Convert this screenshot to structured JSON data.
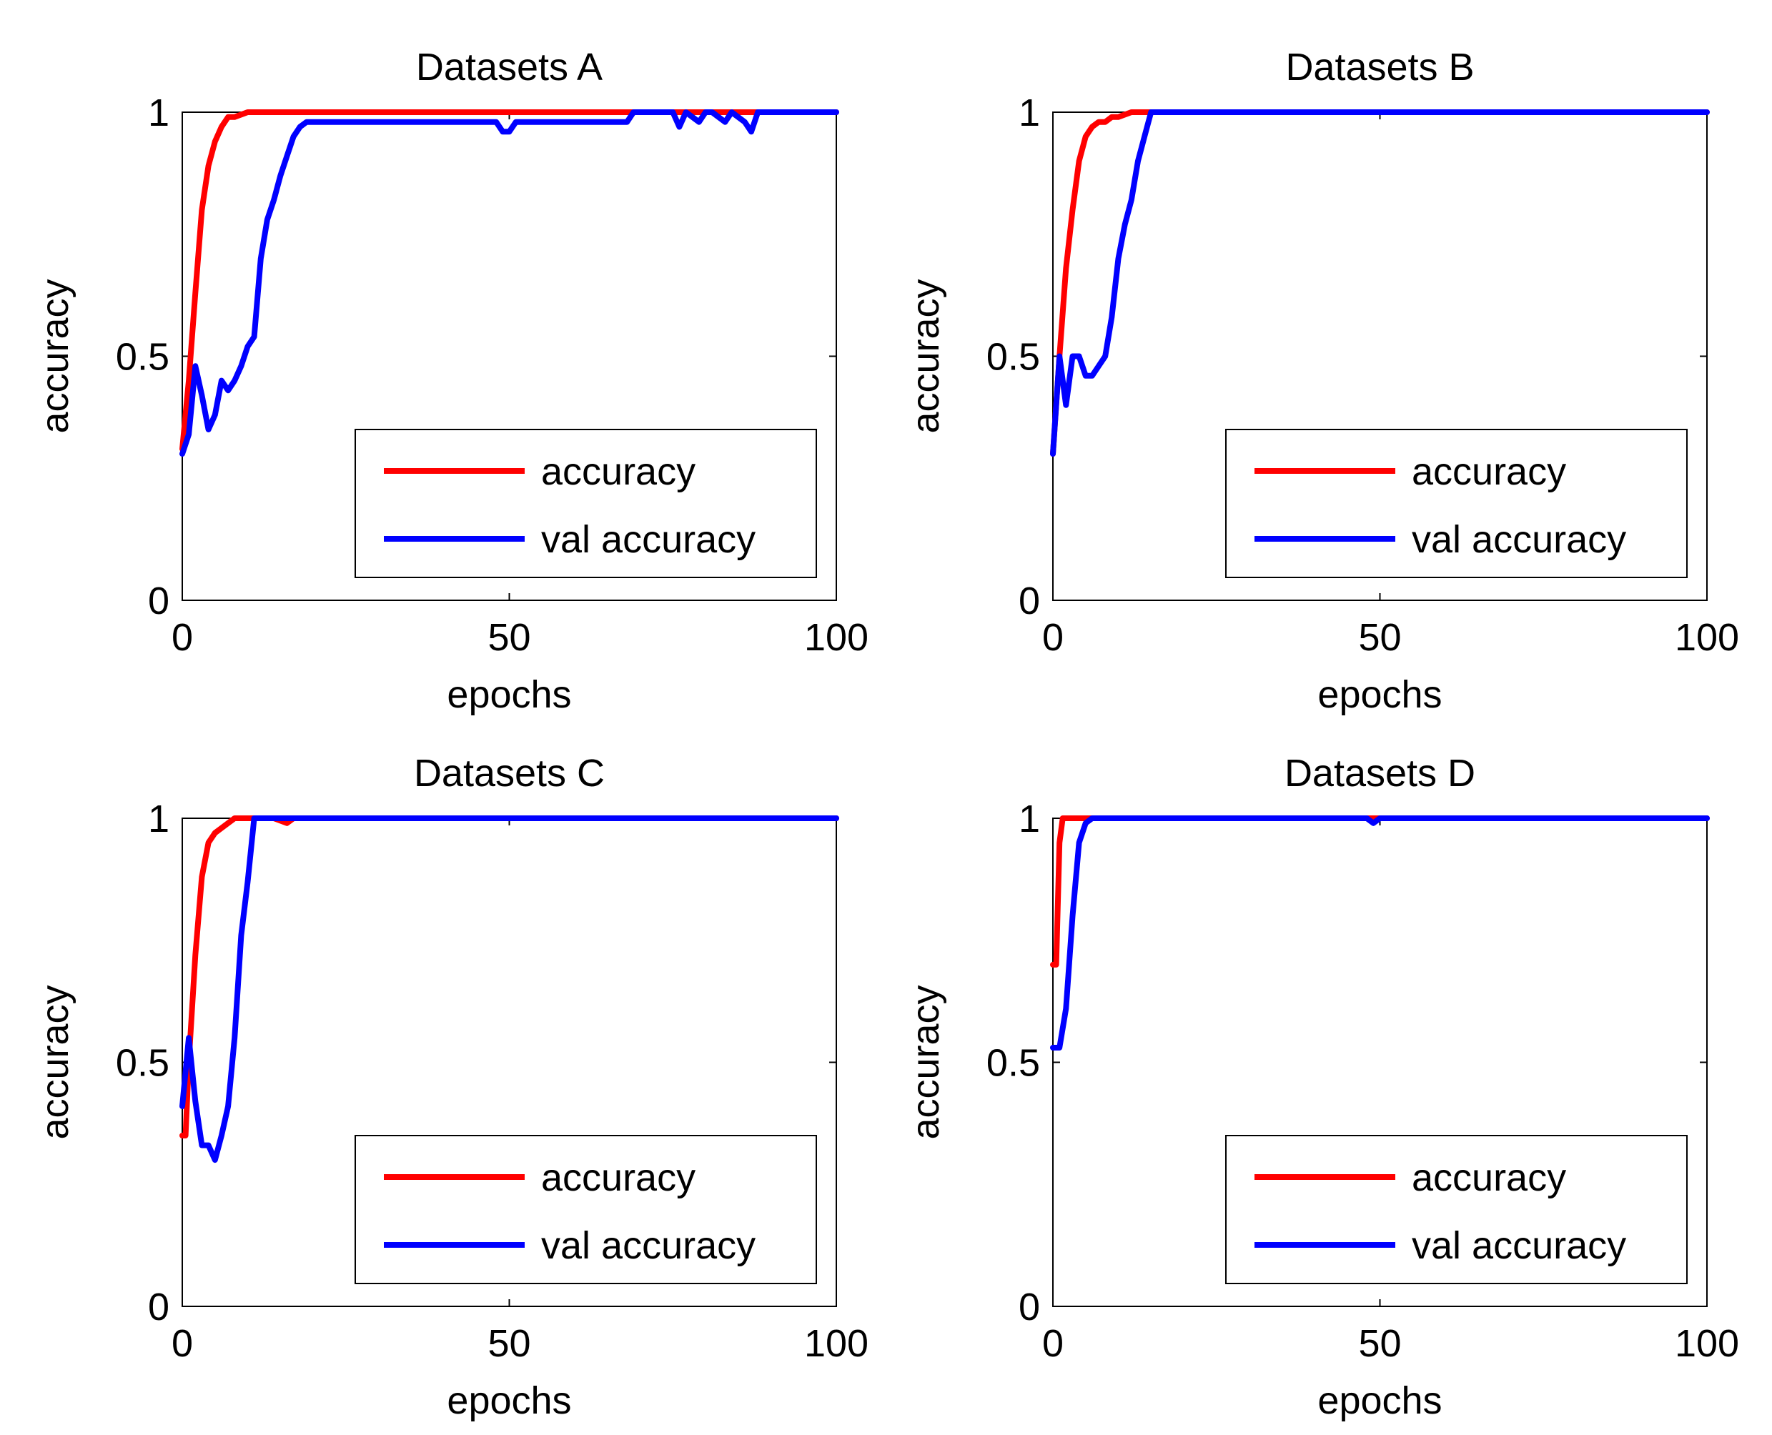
{
  "chart_data": [
    {
      "type": "line",
      "title": "Datasets A",
      "xlabel": "epochs",
      "ylabel": "accuracy",
      "xlim": [
        0,
        100
      ],
      "ylim": [
        0,
        1
      ],
      "xticks": [
        "0",
        "50",
        "100"
      ],
      "yticks": [
        "0",
        "0.5",
        "1"
      ],
      "legend_position": "bottom-right",
      "series": [
        {
          "name": "accuracy",
          "color": "#ff0000",
          "x": [
            0,
            1,
            2,
            3,
            4,
            5,
            6,
            7,
            8,
            10,
            12,
            14,
            16,
            18,
            20,
            100
          ],
          "values": [
            0.31,
            0.45,
            0.63,
            0.8,
            0.89,
            0.94,
            0.97,
            0.99,
            0.99,
            1.0,
            1.0,
            1.0,
            1.0,
            1.0,
            1.0,
            1.0
          ]
        },
        {
          "name": "val accuracy",
          "color": "#0000ff",
          "x": [
            0,
            1,
            2,
            3,
            4,
            5,
            6,
            7,
            8,
            9,
            10,
            11,
            12,
            13,
            14,
            15,
            16,
            17,
            18,
            19,
            20,
            48,
            49,
            50,
            51,
            68,
            69,
            75,
            76,
            77,
            79,
            80,
            81,
            83,
            84,
            86,
            87,
            88,
            100
          ],
          "values": [
            0.3,
            0.34,
            0.48,
            0.42,
            0.35,
            0.38,
            0.45,
            0.43,
            0.45,
            0.48,
            0.52,
            0.54,
            0.7,
            0.78,
            0.82,
            0.87,
            0.91,
            0.95,
            0.97,
            0.98,
            0.98,
            0.98,
            0.96,
            0.96,
            0.98,
            0.98,
            1.0,
            1.0,
            0.97,
            1.0,
            0.98,
            1.0,
            1.0,
            0.98,
            1.0,
            0.98,
            0.96,
            1.0,
            1.0
          ]
        }
      ]
    },
    {
      "type": "line",
      "title": "Datasets B",
      "xlabel": "epochs",
      "ylabel": "accuracy",
      "xlim": [
        0,
        100
      ],
      "ylim": [
        0,
        1
      ],
      "xticks": [
        "0",
        "50",
        "100"
      ],
      "yticks": [
        "0",
        "0.5",
        "1"
      ],
      "legend_position": "bottom-right",
      "series": [
        {
          "name": "accuracy",
          "color": "#ff0000",
          "x": [
            0,
            1,
            2,
            3,
            4,
            5,
            6,
            7,
            8,
            9,
            10,
            12,
            14,
            16,
            100
          ],
          "values": [
            0.3,
            0.5,
            0.68,
            0.8,
            0.9,
            0.95,
            0.97,
            0.98,
            0.98,
            0.99,
            0.99,
            1.0,
            1.0,
            1.0,
            1.0
          ]
        },
        {
          "name": "val accuracy",
          "color": "#0000ff",
          "x": [
            0,
            1,
            2,
            3,
            4,
            5,
            6,
            7,
            8,
            9,
            10,
            11,
            12,
            13,
            14,
            15,
            16,
            17,
            18,
            19,
            20,
            100
          ],
          "values": [
            0.3,
            0.5,
            0.4,
            0.5,
            0.5,
            0.46,
            0.46,
            0.48,
            0.5,
            0.58,
            0.7,
            0.77,
            0.82,
            0.9,
            0.95,
            1.0,
            1.0,
            1.0,
            1.0,
            1.0,
            1.0,
            1.0
          ]
        }
      ]
    },
    {
      "type": "line",
      "title": "Datasets C",
      "xlabel": "epochs",
      "ylabel": "accuracy",
      "xlim": [
        0,
        100
      ],
      "ylim": [
        0,
        1
      ],
      "xticks": [
        "0",
        "50",
        "100"
      ],
      "yticks": [
        "0",
        "0.5",
        "1"
      ],
      "legend_position": "bottom-right",
      "series": [
        {
          "name": "accuracy",
          "color": "#ff0000",
          "x": [
            0,
            0.5,
            1,
            2,
            3,
            4,
            5,
            6,
            7,
            8,
            10,
            12,
            14,
            16,
            17,
            18,
            100
          ],
          "values": [
            0.35,
            0.35,
            0.5,
            0.72,
            0.88,
            0.95,
            0.97,
            0.98,
            0.99,
            1.0,
            1.0,
            1.0,
            1.0,
            0.99,
            1.0,
            1.0,
            1.0
          ]
        },
        {
          "name": "val accuracy",
          "color": "#0000ff",
          "x": [
            0,
            1,
            2,
            3,
            4,
            5,
            6,
            7,
            8,
            9,
            10,
            11,
            12,
            13,
            100
          ],
          "values": [
            0.41,
            0.55,
            0.42,
            0.33,
            0.33,
            0.3,
            0.35,
            0.41,
            0.55,
            0.76,
            0.87,
            1.0,
            1.0,
            1.0,
            1.0
          ]
        }
      ]
    },
    {
      "type": "line",
      "title": "Datasets D",
      "xlabel": "epochs",
      "ylabel": "accuracy",
      "xlim": [
        0,
        100
      ],
      "ylim": [
        0,
        1
      ],
      "xticks": [
        "0",
        "50",
        "100"
      ],
      "yticks": [
        "0",
        "0.5",
        "1"
      ],
      "legend_position": "bottom-right",
      "series": [
        {
          "name": "accuracy",
          "color": "#ff0000",
          "x": [
            0,
            0.5,
            1,
            1.5,
            2,
            100
          ],
          "values": [
            0.7,
            0.7,
            0.95,
            1.0,
            1.0,
            1.0
          ]
        },
        {
          "name": "val accuracy",
          "color": "#0000ff",
          "x": [
            0,
            1,
            2,
            3,
            4,
            5,
            6,
            7,
            9,
            48,
            49,
            50,
            100
          ],
          "values": [
            0.53,
            0.53,
            0.61,
            0.8,
            0.95,
            0.99,
            1.0,
            1.0,
            1.0,
            1.0,
            0.99,
            1.0,
            1.0
          ]
        }
      ]
    }
  ]
}
